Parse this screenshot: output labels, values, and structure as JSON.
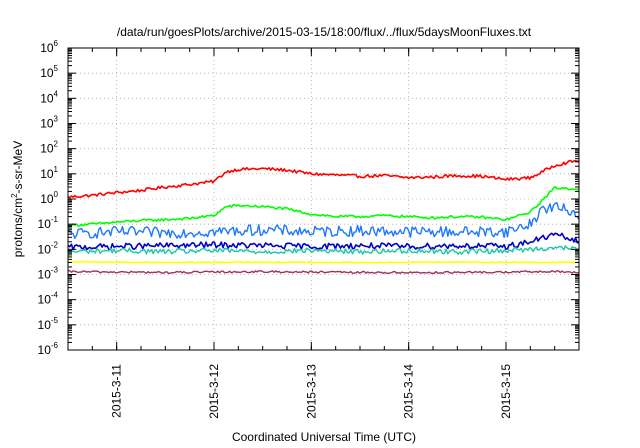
{
  "chart_data": {
    "type": "line",
    "title": "/data/run/goesPlots/archive/2015-03-15/18:00/flux/../flux/5daysMoonFluxes.txt",
    "xlabel": "Coordinated Universal Time (UTC)",
    "ylabel_base": "protons/cm",
    "ylabel_sup": "2",
    "ylabel_rest": "-s-sr-MeV",
    "y_scale": "log",
    "ylim_exp": [
      -6,
      6
    ],
    "y_ticks": [
      {
        "exp": -6,
        "base": "10",
        "sup": "-6"
      },
      {
        "exp": -5,
        "base": "10",
        "sup": "-5"
      },
      {
        "exp": -4,
        "base": "10",
        "sup": "-4"
      },
      {
        "exp": -3,
        "base": "10",
        "sup": "-3"
      },
      {
        "exp": -2,
        "base": "10",
        "sup": "-2"
      },
      {
        "exp": -1,
        "base": "10",
        "sup": "-1"
      },
      {
        "exp": 0,
        "base": "10",
        "sup": "0"
      },
      {
        "exp": 1,
        "base": "10",
        "sup": "1"
      },
      {
        "exp": 2,
        "base": "10",
        "sup": "2"
      },
      {
        "exp": 3,
        "base": "10",
        "sup": "3"
      },
      {
        "exp": 4,
        "base": "10",
        "sup": "4"
      },
      {
        "exp": 5,
        "base": "10",
        "sup": "5"
      },
      {
        "exp": 6,
        "base": "10",
        "sup": "6"
      }
    ],
    "xlim": [
      "2015-03-10 12:00",
      "2015-03-15 18:00"
    ],
    "x_ticks": [
      "2015-3-11",
      "2015-3-12",
      "2015-3-13",
      "2015-3-14",
      "2015-3-15"
    ],
    "grid": true,
    "series": [
      {
        "color": "#ff0000",
        "width": 1.6,
        "values": [
          [
            "2015-03-10 12:00",
            1.2
          ],
          [
            "2015-03-10 18:00",
            1.4
          ],
          [
            "2015-03-11 00:00",
            1.8
          ],
          [
            "2015-03-11 06:00",
            2.2
          ],
          [
            "2015-03-11 12:00",
            3.0
          ],
          [
            "2015-03-11 18:00",
            3.8
          ],
          [
            "2015-03-12 00:00",
            5.0
          ],
          [
            "2015-03-12 03:00",
            12.0
          ],
          [
            "2015-03-12 06:00",
            15.0
          ],
          [
            "2015-03-12 12:00",
            16.0
          ],
          [
            "2015-03-12 18:00",
            14.0
          ],
          [
            "2015-03-13 00:00",
            10.0
          ],
          [
            "2015-03-13 06:00",
            9.0
          ],
          [
            "2015-03-13 12:00",
            8.0
          ],
          [
            "2015-03-13 18:00",
            8.5
          ],
          [
            "2015-03-14 00:00",
            7.0
          ],
          [
            "2015-03-14 06:00",
            7.5
          ],
          [
            "2015-03-14 12:00",
            8.5
          ],
          [
            "2015-03-14 18:00",
            8.0
          ],
          [
            "2015-03-15 00:00",
            6.0
          ],
          [
            "2015-03-15 06:00",
            7.0
          ],
          [
            "2015-03-15 09:00",
            12.0
          ],
          [
            "2015-03-15 12:00",
            22.0
          ],
          [
            "2015-03-15 18:00",
            35.0
          ]
        ]
      },
      {
        "color": "#00ff00",
        "width": 1.6,
        "values": [
          [
            "2015-03-10 12:00",
            0.09
          ],
          [
            "2015-03-10 18:00",
            0.1
          ],
          [
            "2015-03-11 00:00",
            0.12
          ],
          [
            "2015-03-11 06:00",
            0.14
          ],
          [
            "2015-03-11 12:00",
            0.15
          ],
          [
            "2015-03-11 18:00",
            0.17
          ],
          [
            "2015-03-12 00:00",
            0.22
          ],
          [
            "2015-03-12 03:00",
            0.5
          ],
          [
            "2015-03-12 06:00",
            0.55
          ],
          [
            "2015-03-12 12:00",
            0.5
          ],
          [
            "2015-03-12 18:00",
            0.4
          ],
          [
            "2015-03-13 00:00",
            0.25
          ],
          [
            "2015-03-13 06:00",
            0.2
          ],
          [
            "2015-03-13 12:00",
            0.2
          ],
          [
            "2015-03-13 18:00",
            0.22
          ],
          [
            "2015-03-14 00:00",
            0.2
          ],
          [
            "2015-03-14 06:00",
            0.18
          ],
          [
            "2015-03-14 12:00",
            0.2
          ],
          [
            "2015-03-14 18:00",
            0.19
          ],
          [
            "2015-03-15 00:00",
            0.15
          ],
          [
            "2015-03-15 06:00",
            0.3
          ],
          [
            "2015-03-15 09:00",
            0.9
          ],
          [
            "2015-03-15 12:00",
            2.8
          ],
          [
            "2015-03-15 18:00",
            2.5
          ]
        ]
      },
      {
        "color": "#1e78ff",
        "width": 1.4,
        "values": [
          [
            "2015-03-10 12:00",
            0.04
          ],
          [
            "2015-03-11 00:00",
            0.05
          ],
          [
            "2015-03-11 12:00",
            0.045
          ],
          [
            "2015-03-12 00:00",
            0.05
          ],
          [
            "2015-03-12 12:00",
            0.06
          ],
          [
            "2015-03-13 00:00",
            0.05
          ],
          [
            "2015-03-13 12:00",
            0.055
          ],
          [
            "2015-03-14 00:00",
            0.05
          ],
          [
            "2015-03-14 12:00",
            0.05
          ],
          [
            "2015-03-15 00:00",
            0.05
          ],
          [
            "2015-03-15 06:00",
            0.1
          ],
          [
            "2015-03-15 09:00",
            0.4
          ],
          [
            "2015-03-15 12:00",
            0.5
          ],
          [
            "2015-03-15 18:00",
            0.25
          ]
        ]
      },
      {
        "color": "#0000cc",
        "width": 1.6,
        "values": [
          [
            "2015-03-10 12:00",
            0.012
          ],
          [
            "2015-03-11 00:00",
            0.013
          ],
          [
            "2015-03-11 12:00",
            0.014
          ],
          [
            "2015-03-12 00:00",
            0.015
          ],
          [
            "2015-03-12 12:00",
            0.014
          ],
          [
            "2015-03-13 00:00",
            0.013
          ],
          [
            "2015-03-13 12:00",
            0.014
          ],
          [
            "2015-03-14 00:00",
            0.013
          ],
          [
            "2015-03-14 12:00",
            0.014
          ],
          [
            "2015-03-15 00:00",
            0.013
          ],
          [
            "2015-03-15 06:00",
            0.02
          ],
          [
            "2015-03-15 12:00",
            0.04
          ],
          [
            "2015-03-15 18:00",
            0.02
          ]
        ]
      },
      {
        "color": "#18c8a0",
        "width": 1.4,
        "values": [
          [
            "2015-03-10 12:00",
            0.008
          ],
          [
            "2015-03-11 00:00",
            0.009
          ],
          [
            "2015-03-11 12:00",
            0.008
          ],
          [
            "2015-03-12 00:00",
            0.009
          ],
          [
            "2015-03-12 12:00",
            0.008
          ],
          [
            "2015-03-13 00:00",
            0.009
          ],
          [
            "2015-03-13 12:00",
            0.008
          ],
          [
            "2015-03-14 00:00",
            0.009
          ],
          [
            "2015-03-14 12:00",
            0.008
          ],
          [
            "2015-03-15 00:00",
            0.009
          ],
          [
            "2015-03-15 06:00",
            0.01
          ],
          [
            "2015-03-15 12:00",
            0.012
          ],
          [
            "2015-03-15 18:00",
            0.01
          ]
        ]
      },
      {
        "color": "#ffff00",
        "width": 1.6,
        "values": [
          [
            "2015-03-10 12:00",
            0.0032
          ],
          [
            "2015-03-11 12:00",
            0.003
          ],
          [
            "2015-03-12 12:00",
            0.0031
          ],
          [
            "2015-03-13 12:00",
            0.003
          ],
          [
            "2015-03-14 12:00",
            0.0031
          ],
          [
            "2015-03-15 12:00",
            0.003
          ],
          [
            "2015-03-15 18:00",
            0.0031
          ]
        ]
      },
      {
        "color": "#a0306a",
        "width": 1.4,
        "values": [
          [
            "2015-03-10 12:00",
            0.0013
          ],
          [
            "2015-03-11 12:00",
            0.0012
          ],
          [
            "2015-03-12 12:00",
            0.0013
          ],
          [
            "2015-03-13 12:00",
            0.0012
          ],
          [
            "2015-03-14 12:00",
            0.0012
          ],
          [
            "2015-03-15 12:00",
            0.0013
          ],
          [
            "2015-03-15 18:00",
            0.0012
          ]
        ]
      }
    ]
  }
}
